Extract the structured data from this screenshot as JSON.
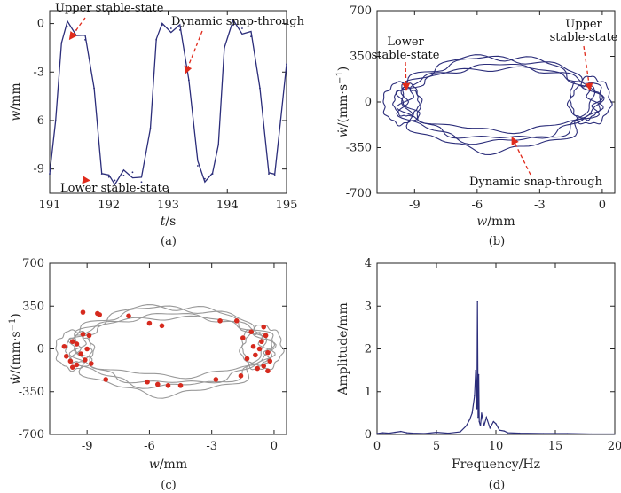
{
  "chart_data": [
    {
      "id": "a",
      "type": "line",
      "caption": "(a)",
      "xlabel_parts": [
        "t",
        "/s"
      ],
      "ylabel_parts": [
        "w",
        "/mm"
      ],
      "xlim": [
        191,
        195
      ],
      "ylim": [
        -10.5,
        0.8
      ],
      "xticks": [
        "191",
        "192",
        "193",
        "194",
        "195"
      ],
      "yticks": [
        "0",
        "-3",
        "-6",
        "-9"
      ],
      "color": "#2b2d7a",
      "series": {
        "x": [
          191.0,
          191.1,
          191.2,
          191.3,
          191.45,
          191.6,
          191.75,
          191.88,
          192.0,
          192.1,
          192.25,
          192.4,
          192.55,
          192.7,
          192.8,
          192.9,
          193.05,
          193.2,
          193.35,
          193.5,
          193.62,
          193.75,
          193.85,
          193.95,
          194.1,
          194.25,
          194.4,
          194.55,
          194.7,
          194.8,
          194.9,
          195.0
        ],
        "y": [
          -9.3,
          -6.0,
          -1.2,
          -0.2,
          -0.4,
          -1.0,
          -4.0,
          -9.3,
          -9.5,
          -9.7,
          -9.4,
          -9.2,
          -9.8,
          -6.5,
          -1.0,
          -0.1,
          -0.3,
          -0.4,
          -3.5,
          -8.8,
          -9.6,
          -9.3,
          -7.5,
          -1.5,
          -0.1,
          -0.3,
          -0.8,
          -4.0,
          -9.3,
          -9.4,
          -6.0,
          -2.5
        ]
      },
      "annotations": [
        {
          "text": "Upper stable-state",
          "at": [
            191.35,
            -0.9
          ]
        },
        {
          "text": "Dynamic snap-through",
          "at": [
            193.3,
            -3.0
          ]
        },
        {
          "text": "Lower stable-state",
          "at": [
            191.65,
            -9.7
          ]
        }
      ]
    },
    {
      "id": "b",
      "type": "line",
      "caption": "(b)",
      "xlabel_parts": [
        "w",
        "/mm"
      ],
      "ylabel_parts": [
        "ẇ",
        "/(mm·s",
        "−1",
        ")"
      ],
      "xlim": [
        -10.8,
        0.6
      ],
      "ylim": [
        -700,
        700
      ],
      "xticks": [
        "-9",
        "-6",
        "-3",
        "0"
      ],
      "yticks": [
        "700",
        "350",
        "0",
        "-350",
        "-700"
      ],
      "color": "#2b2d7a",
      "loops": [
        {
          "cx": -4.9,
          "cy": 0,
          "rx": 4.6,
          "ry": 280
        },
        {
          "cx": -5.0,
          "cy": 15,
          "rx": 4.7,
          "ry": 320
        },
        {
          "cx": -5.1,
          "cy": -10,
          "rx": 4.5,
          "ry": 360
        },
        {
          "cx": -4.8,
          "cy": 20,
          "rx": 4.8,
          "ry": 240
        }
      ],
      "clusters": [
        {
          "cx": -9.4,
          "cy": 0,
          "rx": 0.6,
          "ry": 110
        },
        {
          "cx": -9.6,
          "cy": -10,
          "rx": 0.9,
          "ry": 160
        },
        {
          "cx": -0.8,
          "cy": 0,
          "rx": 0.7,
          "ry": 130
        },
        {
          "cx": -0.6,
          "cy": 10,
          "rx": 1.0,
          "ry": 180
        }
      ],
      "annotations": [
        {
          "text": "Lower",
          "at": [
            -9.4,
            100
          ]
        },
        {
          "text": "stable-state",
          "at": [
            -9.4,
            100
          ]
        },
        {
          "text": "Upper",
          "at": [
            -0.6,
            100
          ]
        },
        {
          "text": "stable-state",
          "at": [
            -0.6,
            100
          ]
        },
        {
          "text": "Dynamic snap-through",
          "at": [
            -4.3,
            -280
          ]
        }
      ]
    },
    {
      "id": "c",
      "type": "scatter",
      "caption": "(c)",
      "xlabel_parts": [
        "w",
        "/mm"
      ],
      "ylabel_parts": [
        "ẇ",
        "/(mm·s",
        "−1",
        ")"
      ],
      "xlim": [
        -10.8,
        0.6
      ],
      "ylim": [
        -700,
        700
      ],
      "xticks": [
        "-9",
        "-6",
        "-3",
        "0"
      ],
      "yticks": [
        "700",
        "350",
        "0",
        "-350",
        "-700"
      ],
      "line_color": "#999999",
      "point_color": "#d62a1e",
      "points": [
        [
          -9.2,
          300
        ],
        [
          -8.5,
          290
        ],
        [
          -8.4,
          280
        ],
        [
          -7.0,
          270
        ],
        [
          -5.4,
          190
        ],
        [
          -6.0,
          210
        ],
        [
          -2.6,
          230
        ],
        [
          -1.8,
          230
        ],
        [
          -0.5,
          180
        ],
        [
          -10.1,
          20
        ],
        [
          -9.7,
          60
        ],
        [
          -9.5,
          40
        ],
        [
          -9.3,
          -40
        ],
        [
          -9.8,
          -100
        ],
        [
          -9.1,
          -90
        ],
        [
          -9.0,
          0
        ],
        [
          -9.5,
          -130
        ],
        [
          -8.8,
          -120
        ],
        [
          -9.2,
          120
        ],
        [
          -8.9,
          110
        ],
        [
          -10.0,
          -60
        ],
        [
          -9.7,
          -150
        ],
        [
          -1.0,
          20
        ],
        [
          -0.6,
          60
        ],
        [
          -0.9,
          -50
        ],
        [
          -1.3,
          -80
        ],
        [
          -0.5,
          -140
        ],
        [
          -0.8,
          -160
        ],
        [
          -0.3,
          -180
        ],
        [
          -1.5,
          90
        ],
        [
          -0.4,
          110
        ],
        [
          -1.1,
          140
        ],
        [
          -0.2,
          -100
        ],
        [
          -0.7,
          0
        ],
        [
          -0.3,
          -30
        ],
        [
          -8.1,
          -250
        ],
        [
          -6.1,
          -270
        ],
        [
          -5.6,
          -290
        ],
        [
          -5.1,
          -300
        ],
        [
          -4.5,
          -300
        ],
        [
          -1.6,
          -220
        ],
        [
          -2.8,
          -250
        ]
      ],
      "loops": [
        {
          "cx": -4.9,
          "cy": 0,
          "rx": 4.6,
          "ry": 280
        },
        {
          "cx": -5.0,
          "cy": 15,
          "rx": 4.7,
          "ry": 320
        },
        {
          "cx": -5.1,
          "cy": -10,
          "rx": 4.5,
          "ry": 360
        },
        {
          "cx": -4.8,
          "cy": 20,
          "rx": 4.8,
          "ry": 240
        }
      ],
      "clusters": [
        {
          "cx": -9.4,
          "cy": 0,
          "rx": 0.6,
          "ry": 110
        },
        {
          "cx": -9.6,
          "cy": -10,
          "rx": 0.9,
          "ry": 160
        },
        {
          "cx": -0.8,
          "cy": 0,
          "rx": 0.7,
          "ry": 130
        },
        {
          "cx": -0.6,
          "cy": 10,
          "rx": 1.0,
          "ry": 180
        }
      ]
    },
    {
      "id": "d",
      "type": "line",
      "caption": "(d)",
      "xlabel_parts": [
        "Frequency/Hz"
      ],
      "ylabel_parts": [
        "Amplitude/mm"
      ],
      "xlim": [
        0,
        20
      ],
      "ylim": [
        0,
        4
      ],
      "xticks": [
        "0",
        "5",
        "10",
        "15",
        "20"
      ],
      "yticks": [
        "4",
        "3",
        "2",
        "1",
        "0"
      ],
      "color": "#2b2d7a",
      "series": {
        "x": [
          0.0,
          0.5,
          1.0,
          1.5,
          2.0,
          2.5,
          3.0,
          4.0,
          5.0,
          6.0,
          7.0,
          7.5,
          7.8,
          8.0,
          8.2,
          8.3,
          8.4,
          8.45,
          8.5,
          8.55,
          8.6,
          8.7,
          8.8,
          9.0,
          9.2,
          9.5,
          9.8,
          10.0,
          10.3,
          10.7,
          11.0,
          12.0,
          14.0,
          16.0,
          18.0,
          20.0
        ],
        "y": [
          0.02,
          0.04,
          0.03,
          0.05,
          0.07,
          0.04,
          0.03,
          0.02,
          0.05,
          0.03,
          0.06,
          0.2,
          0.35,
          0.5,
          0.9,
          1.5,
          0.6,
          3.1,
          0.4,
          1.4,
          0.3,
          0.2,
          0.5,
          0.2,
          0.4,
          0.15,
          0.3,
          0.25,
          0.1,
          0.08,
          0.04,
          0.03,
          0.02,
          0.02,
          0.01,
          0.01
        ]
      }
    }
  ]
}
